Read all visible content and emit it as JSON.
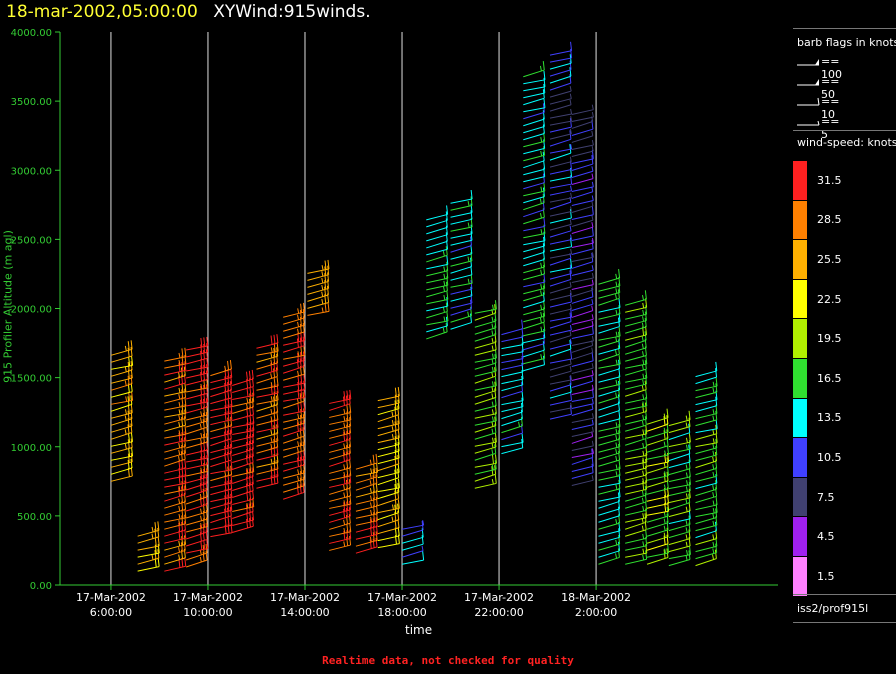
{
  "title": {
    "date": "18-mar-2002,05:00:00",
    "name": "XYWind:915winds."
  },
  "footer_note": "Realtime data, not checked for quality",
  "source_label": "iss2/prof915l",
  "legend": {
    "barb_title": "barb flags in knots",
    "barb_items": [
      {
        "label": "== 100",
        "type": "pennant"
      },
      {
        "label": "== 50",
        "type": "flag"
      },
      {
        "label": "== 10",
        "type": "full"
      },
      {
        "label": "== 5",
        "type": "half"
      }
    ],
    "speed_title": "wind-speed: knots",
    "speed_items": [
      {
        "label": "31.5",
        "color": "#ff2020"
      },
      {
        "label": "28.5",
        "color": "#ff8000"
      },
      {
        "label": "25.5",
        "color": "#ffb000"
      },
      {
        "label": "22.5",
        "color": "#ffff00"
      },
      {
        "label": "19.5",
        "color": "#b0f000"
      },
      {
        "label": "16.5",
        "color": "#30e030"
      },
      {
        "label": "13.5",
        "color": "#00ffff"
      },
      {
        "label": "10.5",
        "color": "#4040ff"
      },
      {
        "label": "7.5",
        "color": "#404070"
      },
      {
        "label": "4.5",
        "color": "#a020f0"
      },
      {
        "label": "1.5",
        "color": "#ff80ff"
      }
    ]
  },
  "chart_data": {
    "type": "scatter",
    "title": "18-mar-2002,05:00:00 XYWind:915winds.",
    "xlabel": "time",
    "ylabel": "915 Profiler Altitude (m agl)",
    "ylim": [
      0,
      4000
    ],
    "yticks": [
      "0.00",
      "500.00",
      "1000.00",
      "1500.00",
      "2000.00",
      "2500.00",
      "3000.00",
      "3500.00",
      "4000.00"
    ],
    "xlim_hours": [
      3.9,
      33.5
    ],
    "xticks": [
      {
        "hour": 6,
        "line1": "17-Mar-2002",
        "line2": "6:00:00"
      },
      {
        "hour": 10,
        "line1": "17-Mar-2002",
        "line2": "10:00:00"
      },
      {
        "hour": 14,
        "line1": "17-Mar-2002",
        "line2": "14:00:00"
      },
      {
        "hour": 18,
        "line1": "17-Mar-2002",
        "line2": "18:00:00"
      },
      {
        "hour": 22,
        "line1": "17-Mar-2002",
        "line2": "22:00:00"
      },
      {
        "hour": 26,
        "line1": "18-Mar-2002",
        "line2": "2:00:00"
      }
    ],
    "grid": "vertical",
    "columns": [
      {
        "hour": 6.0,
        "top": 1700,
        "bottom": 750,
        "speed": 25
      },
      {
        "hour": 7.1,
        "top": 400,
        "bottom": 100,
        "speed": 26
      },
      {
        "hour": 8.2,
        "top": 1650,
        "bottom": 100,
        "speed": 29
      },
      {
        "hour": 9.1,
        "top": 1720,
        "bottom": 130,
        "speed": 31
      },
      {
        "hour": 10.1,
        "top": 1550,
        "bottom": 350,
        "speed": 32
      },
      {
        "hour": 11.0,
        "top": 1450,
        "bottom": 380,
        "speed": 32
      },
      {
        "hour": 12.0,
        "top": 1720,
        "bottom": 700,
        "speed": 29
      },
      {
        "hour": 13.1,
        "top": 1980,
        "bottom": 620,
        "speed": 30
      },
      {
        "hour": 14.1,
        "top": 2300,
        "bottom": 1950,
        "speed": 28
      },
      {
        "hour": 15.0,
        "top": 1330,
        "bottom": 250,
        "speed": 30
      },
      {
        "hour": 16.1,
        "top": 880,
        "bottom": 230,
        "speed": 29
      },
      {
        "hour": 17.0,
        "top": 1350,
        "bottom": 270,
        "speed": 24
      },
      {
        "hour": 18.0,
        "top": 430,
        "bottom": 150,
        "speed": 11
      },
      {
        "hour": 19.0,
        "top": 2680,
        "bottom": 1780,
        "speed": 15
      },
      {
        "hour": 20.0,
        "top": 2780,
        "bottom": 1850,
        "speed": 14
      },
      {
        "hour": 21.0,
        "top": 1980,
        "bottom": 700,
        "speed": 18
      },
      {
        "hour": 22.1,
        "top": 1850,
        "bottom": 950,
        "speed": 13
      },
      {
        "hour": 23.0,
        "top": 3720,
        "bottom": 1550,
        "speed": 14
      },
      {
        "hour": 24.1,
        "top": 3850,
        "bottom": 1200,
        "speed": 10
      },
      {
        "hour": 25.0,
        "top": 3450,
        "bottom": 720,
        "speed": 8
      },
      {
        "hour": 26.1,
        "top": 2200,
        "bottom": 150,
        "speed": 15
      },
      {
        "hour": 27.2,
        "top": 2050,
        "bottom": 150,
        "speed": 18
      },
      {
        "hour": 28.1,
        "top": 1180,
        "bottom": 150,
        "speed": 19
      },
      {
        "hour": 29.0,
        "top": 1180,
        "bottom": 140,
        "speed": 17
      },
      {
        "hour": 30.1,
        "top": 1520,
        "bottom": 140,
        "speed": 17
      }
    ]
  }
}
